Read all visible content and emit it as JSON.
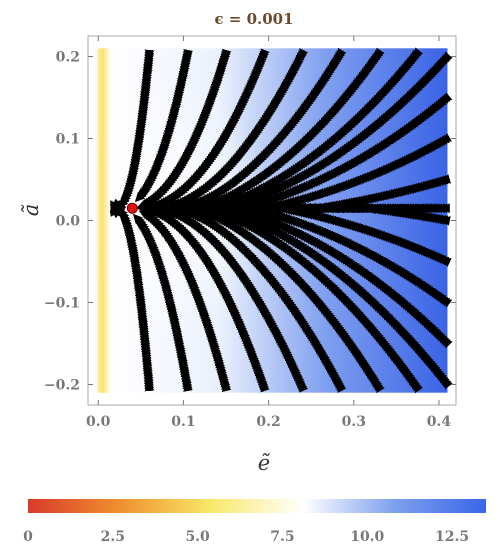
{
  "chart_data": {
    "type": "streamplot",
    "title": "ϵ = 0.001",
    "xlabel": "ẽ",
    "ylabel": "ã",
    "xlim": [
      -0.012,
      0.42
    ],
    "ylim": [
      -0.225,
      0.225
    ],
    "x_ticks": [
      0.0,
      0.1,
      0.2,
      0.3,
      0.4
    ],
    "x_tick_labels": [
      "0.0",
      "0.1",
      "0.2",
      "0.3",
      "0.4"
    ],
    "y_ticks": [
      -0.2,
      -0.1,
      0.0,
      0.1,
      0.2
    ],
    "y_tick_labels": [
      "−0.2",
      "−0.1",
      "0.0",
      "0.1",
      "0.2"
    ],
    "data_region": {
      "x": [
        0.0,
        0.41
      ],
      "y": [
        -0.21,
        0.21
      ]
    },
    "fixed_point": {
      "x": 0.04,
      "y": 0.015,
      "color": "#dd1111"
    },
    "colorbar": {
      "min": 0,
      "max": 13.5,
      "ticks": [
        0,
        2.5,
        5.0,
        7.5,
        10.0,
        12.5
      ],
      "tick_labels": [
        "0",
        "2.5",
        "5.0",
        "7.5",
        "10.0",
        "12.5"
      ],
      "colors": [
        "#d93a2b",
        "#ef8f2f",
        "#f8e96a",
        "#ffffff",
        "#7da0ee",
        "#3a66e8"
      ]
    },
    "grid": false,
    "colors": {
      "stream": "#000000",
      "frame": "#aaaaaa"
    }
  }
}
